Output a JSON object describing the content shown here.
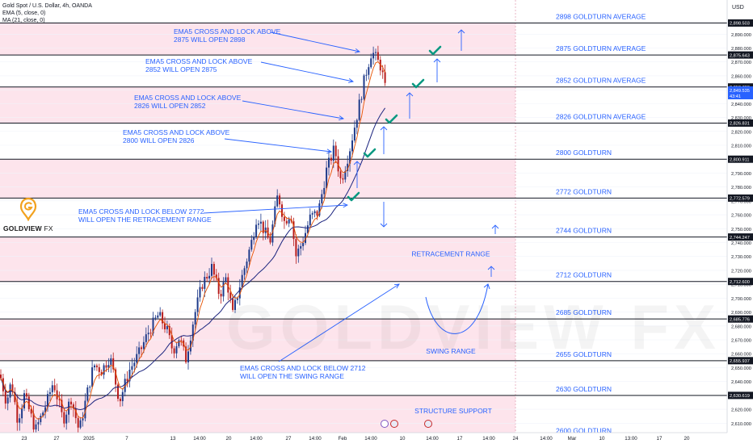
{
  "header": {
    "title": "Gold Spot / U.S. Dollar, 4h, OANDA",
    "indicator_ema": "EMA (5, close, 0)",
    "indicator_ma": "MA (21, close, 0)",
    "currency": "USD"
  },
  "brand": {
    "name": "GOLDVIEW",
    "suffix": "FX",
    "watermark": "GOLDVIEW FX"
  },
  "colors": {
    "zone_fill": "#fde4ec",
    "level_line": "#131722",
    "annotation_blue": "#2962ff",
    "bull_candle": "#1e3a8a",
    "bear_candle": "#b71c1c",
    "ema_line": "#e65100",
    "ma_line": "#1a237e",
    "check_green": "#089981",
    "current_price_bg": "#2962ff"
  },
  "chart_data": {
    "type": "candlestick",
    "timeframe": "4h",
    "ylim": [
      2600,
      2905
    ],
    "x_tick_labels": [
      "23",
      "27",
      "2025",
      "7",
      "13",
      "14:00",
      "20",
      "14:00",
      "27",
      "14:00",
      "Feb",
      "14:00",
      "10",
      "14:00",
      "17",
      "14:00",
      "24",
      "14:00",
      "Mar",
      "10",
      "13:00",
      "17",
      "20"
    ],
    "y_tick_labels": [
      2610,
      2620,
      2630,
      2640,
      2650,
      2660,
      2670,
      2680,
      2690,
      2700,
      2710,
      2720,
      2730,
      2740,
      2750,
      2760,
      2770,
      2780,
      2790,
      2800,
      2810,
      2820,
      2830,
      2840,
      2850,
      2860,
      2870,
      2880,
      2890
    ],
    "levels": [
      {
        "value": 2898,
        "name": "2898 GOLDTURN AVERAGE",
        "tag": "2,898.503"
      },
      {
        "value": 2875,
        "name": "2875 GOLDTURN AVERAGE",
        "tag": "2,875.643"
      },
      {
        "value": 2852,
        "name": "2852 GOLDTURN AVERAGE",
        "tag": "2,852.783"
      },
      {
        "value": 2826,
        "name": "2826 GOLDTURN AVERAGE",
        "tag": "2,826.831"
      },
      {
        "value": 2800,
        "name": "2800 GOLDTURN",
        "tag": "2,800.911"
      },
      {
        "value": 2772,
        "name": "2772 GOLDTURN",
        "tag": "2,772.579"
      },
      {
        "value": 2744,
        "name": "2744 GOLDTURN",
        "tag": "2,744.247"
      },
      {
        "value": 2712,
        "name": "2712 GOLDTURN",
        "tag": "2,712.600"
      },
      {
        "value": 2685,
        "name": "2685 GOLDTURN",
        "tag": "2,685.776"
      },
      {
        "value": 2655,
        "name": "2655 GOLDTURN",
        "tag": "2,655.937"
      },
      {
        "value": 2630,
        "name": "2630 GOLDTURN",
        "tag": "2,630.619"
      },
      {
        "value": 2600,
        "name": "2600 GOLDTURN",
        "tag": "2,600.781"
      }
    ],
    "current_price": {
      "value": 2849.5,
      "label": "2,849.535",
      "countdown": "43:41"
    },
    "range_labels": {
      "retracement": "RETRACEMENT RANGE",
      "swing": "SWING RANGE",
      "structure": "STRUCTURE SUPPORT"
    },
    "annotations": [
      {
        "line1": "EMA5 CROSS AND LOCK ABOVE",
        "line2": "2875 WILL OPEN 2898"
      },
      {
        "line1": "EMA5 CROSS AND LOCK ABOVE",
        "line2": "2852 WILL OPEN 2875"
      },
      {
        "line1": "EMA5 CROSS AND LOCK ABOVE",
        "line2": "2826 WILL OPEN 2852"
      },
      {
        "line1": "EMA5 CROSS AND LOCK ABOVE",
        "line2": "2800 WILL OPEN 2826"
      },
      {
        "line1": "EMA5 CROSS AND LOCK BELOW 2772",
        "line2": "WILL OPEN THE RETRACEMENT RANGE"
      },
      {
        "line1": "EMA5 CROSS AND LOCK BELOW 2712",
        "line2": "WILL OPEN THE SWING RANGE"
      }
    ]
  }
}
